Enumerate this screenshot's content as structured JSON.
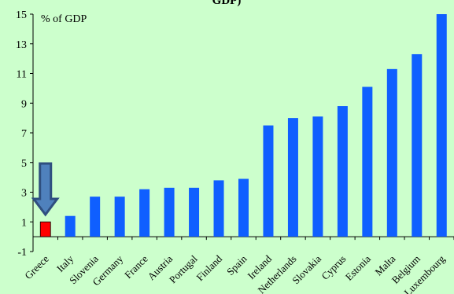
{
  "chart_data": {
    "type": "bar",
    "title": "GDP)",
    "unit_label": "% of GDP",
    "xlabel": "",
    "ylabel": "",
    "ylim": [
      -1,
      15
    ],
    "yticks": [
      -1,
      1,
      3,
      5,
      7,
      9,
      11,
      13,
      15
    ],
    "grid": false,
    "categories": [
      "Greece",
      "Italy",
      "Slovenia",
      "Germany",
      "France",
      "Austria",
      "Portugal",
      "Finland",
      "Spain",
      "Ireland",
      "Netherlands",
      "Slovakia",
      "Cyprus",
      "Estonia",
      "Malta",
      "Belgium",
      "Luxembourg"
    ],
    "values": [
      1.0,
      1.4,
      2.7,
      2.7,
      3.2,
      3.3,
      3.3,
      3.8,
      3.9,
      7.5,
      8.0,
      8.1,
      8.8,
      10.1,
      11.3,
      12.3,
      15.0
    ],
    "highlight_index": 0,
    "colors": {
      "bar": "#0f5fff",
      "highlight": "#ff0000",
      "arrow": "#4f81bd",
      "arrow_outline": "#2f4f7f",
      "background": "#ccffcc"
    }
  }
}
